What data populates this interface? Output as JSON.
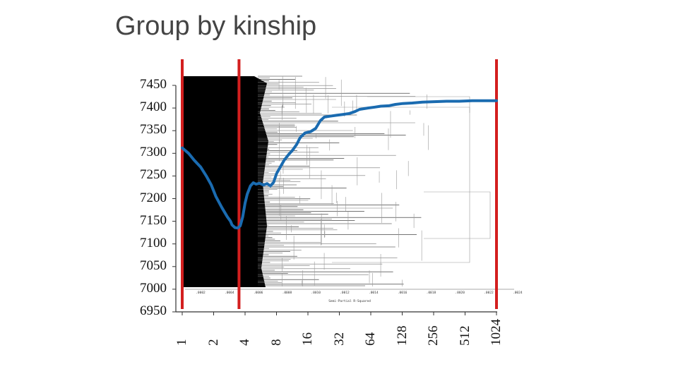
{
  "slide": {
    "title": "Group by kinship"
  },
  "chart_data": {
    "type": "line",
    "title": "Group by kinship",
    "y_ticks": [
      "7450",
      "7400",
      "7350",
      "7300",
      "7250",
      "7200",
      "7150",
      "7100",
      "7050",
      "7000",
      "6950"
    ],
    "x_ticks": [
      "1",
      "2",
      "4",
      "8",
      "16",
      "32",
      "64",
      "128",
      "256",
      "512",
      "1024"
    ],
    "x_scale": "log2",
    "ylim": [
      6950,
      7450
    ],
    "series": [
      {
        "color": "#1a6bb0",
        "x": [
          1,
          1.15,
          1.3,
          1.5,
          1.7,
          1.9,
          2.1,
          2.4,
          2.7,
          2.9,
          3.0,
          3.2,
          3.4,
          3.6,
          3.8,
          4.0,
          4.2,
          4.5,
          4.8,
          5.1,
          5.5,
          6.0,
          6.5,
          7.0,
          7.5,
          8.0,
          8.7,
          9.5,
          10.5,
          11.5,
          12.5,
          13.5,
          15,
          17,
          19,
          21,
          23,
          26,
          30,
          35,
          40,
          45,
          50,
          60,
          70,
          80,
          95,
          110,
          130,
          160,
          200,
          260,
          340,
          450,
          600,
          800,
          1024
        ],
        "values": [
          7312,
          7300,
          7285,
          7270,
          7250,
          7230,
          7205,
          7180,
          7160,
          7150,
          7142,
          7136,
          7135,
          7140,
          7160,
          7190,
          7210,
          7228,
          7235,
          7232,
          7234,
          7230,
          7233,
          7228,
          7236,
          7255,
          7270,
          7285,
          7298,
          7308,
          7320,
          7335,
          7345,
          7348,
          7355,
          7372,
          7380,
          7382,
          7384,
          7386,
          7388,
          7392,
          7397,
          7400,
          7402,
          7404,
          7405,
          7408,
          7410,
          7411,
          7413,
          7414,
          7415,
          7415,
          7416,
          7416,
          7416
        ]
      }
    ],
    "markers": {
      "color": "#d31f1f",
      "x": [
        1,
        3.5,
        1024
      ]
    },
    "background_dendrogram": {
      "xlabel": "Semi-Partial R-Squared",
      "ticks": [
        ".0002",
        ".0004",
        ".0006",
        ".0008",
        ".0010",
        ".0012",
        ".0014",
        ".0016",
        ".0018",
        ".0020",
        ".0022",
        ".0024"
      ]
    }
  }
}
